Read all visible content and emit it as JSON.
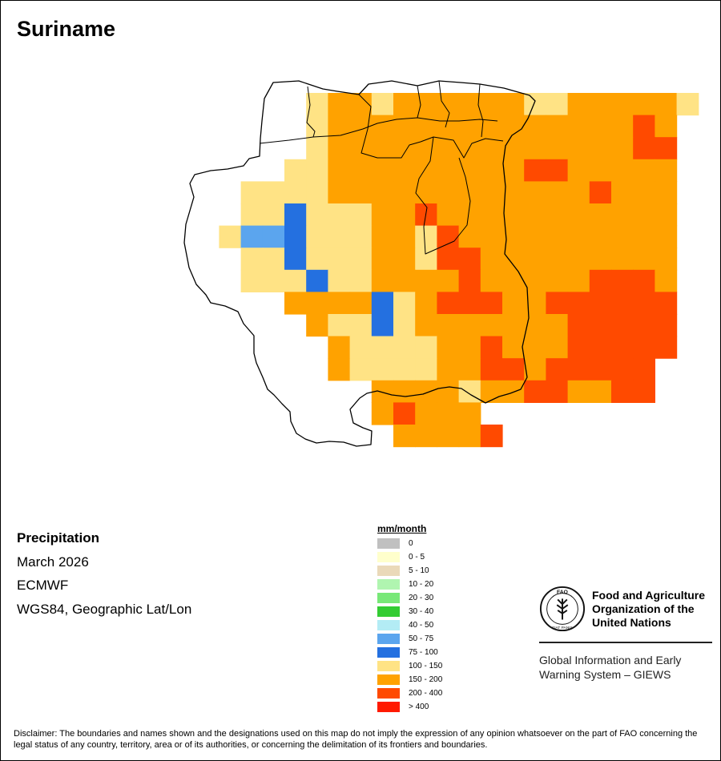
{
  "title": "Suriname",
  "info": {
    "variable": "Precipitation",
    "period": "March 2026",
    "model": "ECMWF",
    "projection": "WGS84, Geographic Lat/Lon"
  },
  "legend": {
    "unit": "mm/month",
    "classes": [
      {
        "label": "0",
        "color": "#c0c0c0"
      },
      {
        "label": "0 - 5",
        "color": "#ffffcc"
      },
      {
        "label": "5 - 10",
        "color": "#ead9b9"
      },
      {
        "label": "10 - 20",
        "color": "#b0f5b0"
      },
      {
        "label": "20 - 30",
        "color": "#78e878"
      },
      {
        "label": "30 - 40",
        "color": "#33cc33"
      },
      {
        "label": "40 - 50",
        "color": "#b3ecf5"
      },
      {
        "label": "50 - 75",
        "color": "#5ba5ee"
      },
      {
        "label": "75 - 100",
        "color": "#2470e0"
      },
      {
        "label": "100 - 150",
        "color": "#ffe385"
      },
      {
        "label": "150 - 200",
        "color": "#ffa200"
      },
      {
        "label": "200 - 400",
        "color": "#ff4a00"
      },
      {
        "label": "> 400",
        "color": "#ff1a00"
      }
    ]
  },
  "grid": {
    "note": "precipitation class index per 0.25 degree cell (9 = 100-150, 10 = 150-200, 11 = 200-400, 8 = 75-100, 7 = 50-75, -1 = no data)",
    "rows": [
      "-1 -1 -1 -1 -1 -1 9 10 10 9 10 10 10 10 10 10 9 9 10 10 10 10 10 9 -1",
      "-1 -1 -1 -1 -1 -1 9 10 10 10 10 10 10 10 10 10 10 10 10 10 10 11 10 -1 -1",
      "-1 -1 -1 -1 -1 -1 9 10 10 10 10 10 10 10 10 10 10 10 10 10 10 11 11 -1 -1",
      "-1 -1 -1 -1 -1 9 9 10 10 10 10 10 10 10 10 10 11 11 10 10 10 10 10 -1 -1",
      "-1 -1 -1 9 9 9 9 10 10 10 10 10 10 10 10 10 10 10 10 11 10 10 10 -1 -1",
      "-1 -1 -1 9 9 8 9 9 9 10 10 11 10 10 10 10 10 10 10 10 10 10 10 -1 -1",
      "-1 -1 9 7 7 8 9 9 9 10 10 9 11 10 10 10 10 10 10 10 10 10 10 -1 -1",
      "-1 -1 -1 9 9 8 9 9 9 10 10 9 11 11 10 10 10 10 10 10 10 10 10 -1 -1",
      "-1 -1 -1 9 9 9 8 9 9 10 10 10 10 11 10 10 10 10 10 11 11 11 10 -1 -1",
      "-1 -1 -1 -1 -1 10 10 10 10 8 9 10 11 11 11 10 10 11 11 11 11 11 11 -1 -1",
      "-1 -1 -1 -1 -1 -1 10 9 9 8 9 10 10 10 10 10 10 10 11 11 11 11 11 -1 -1",
      "-1 -1 -1 -1 -1 -1 -1 10 9 9 9 9 10 10 11 10 10 10 11 11 11 11 11 -1 -1",
      "-1 -1 -1 -1 -1 -1 -1 10 9 9 9 9 10 10 11 11 10 11 11 11 11 11 -1 -1 -1",
      "-1 -1 -1 -1 -1 -1 -1 -1 -1 10 10 10 10 9 10 10 11 11 10 10 11 11 -1 -1 -1",
      "-1 -1 -1 -1 -1 -1 -1 -1 -1 10 11 10 10 10 -1 -1 -1 -1 -1 -1 -1 -1 -1 -1 -1",
      "-1 -1 -1 -1 -1 -1 -1 -1 -1 -1 10 10 10 10 11 -1 -1 -1 -1 -1 -1 -1 -1 -1 -1"
    ]
  },
  "fao": {
    "logo_text": "FAO",
    "logo_motto": "FIAT PANIS",
    "org_line1": "Food and Agriculture",
    "org_line2": "Organization of the",
    "org_line3": "United Nations",
    "giews_line1": "Global Information and Early",
    "giews_line2": "Warning System – GIEWS"
  },
  "disclaimer": "Disclaimer: The boundaries and names shown and the designations used on this map do not imply the expression of any opinion whatsoever on the part of FAO concerning the legal status of any country, territory, area or of its authorities, or concerning the delimitation of its frontiers and boundaries."
}
